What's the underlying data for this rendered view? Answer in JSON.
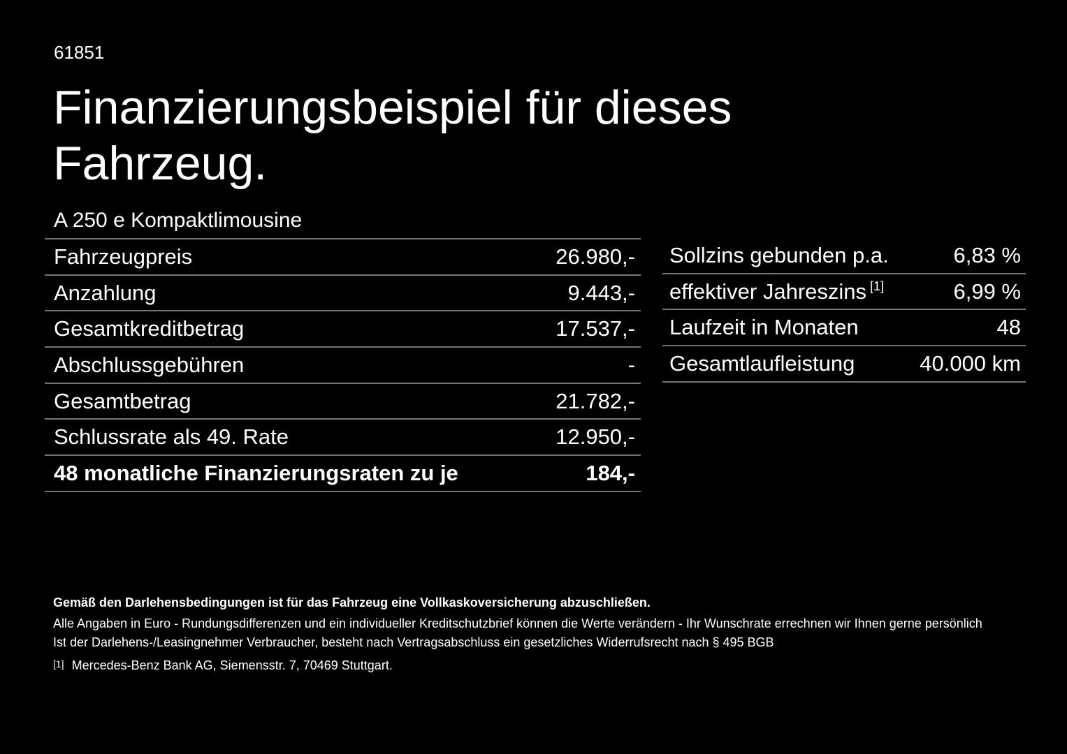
{
  "page": {
    "doc_number": "61851",
    "title": "Finanzierungsbeispiel für dieses Fahrzeug.",
    "model": "A 250 e Kompaktlimousine"
  },
  "finance_table": {
    "rows": [
      {
        "label": "Fahrzeugpreis",
        "value": "26.980,-"
      },
      {
        "label": "Anzahlung",
        "value": "9.443,-"
      },
      {
        "label": "Gesamtkreditbetrag",
        "value": "17.537,-"
      },
      {
        "label": "Abschlussgebühren",
        "value": "-"
      },
      {
        "label": "Gesamtbetrag",
        "value": "21.782,-"
      },
      {
        "label": "Schlussrate als 49. Rate",
        "value": "12.950,-"
      },
      {
        "label": "48 monatliche Finanzierungsraten zu je",
        "value": "184,-"
      }
    ]
  },
  "conditions_table": {
    "rows": [
      {
        "label": "Sollzins gebunden p.a.",
        "value": "6,83 %"
      },
      {
        "label": "effektiver Jahreszins",
        "label_sup": "[1]",
        "value": "6,99 %"
      },
      {
        "label": "Laufzeit in Monaten",
        "value": "48"
      },
      {
        "label": "Gesamtlaufleistung",
        "value": "40.000 km"
      }
    ]
  },
  "footer": {
    "insurance_note": "Gemäß den Darlehensbedingungen ist für das Fahrzeug eine Vollkaskoversicherung abzuschließen.",
    "disclaimer_line1": "Alle Angaben in Euro - Rundungsdifferenzen und ein individueller Kreditschutzbrief können die Werte verändern - Ihr Wunschrate errechnen wir Ihnen gerne persönlich",
    "disclaimer_line2": "Ist der Darlehens-/Leasingnehmer Verbraucher, besteht nach Vertragsabschluss ein gesetzliches Widerrufsrecht nach § 495 BGB",
    "footnote_marker": "[1]",
    "footnote_text": "Mercedes-Benz Bank AG, Siemensstr. 7, 70469 Stuttgart."
  },
  "colors": {
    "background": "#000000",
    "text": "#ffffff",
    "divider": "#757575"
  }
}
